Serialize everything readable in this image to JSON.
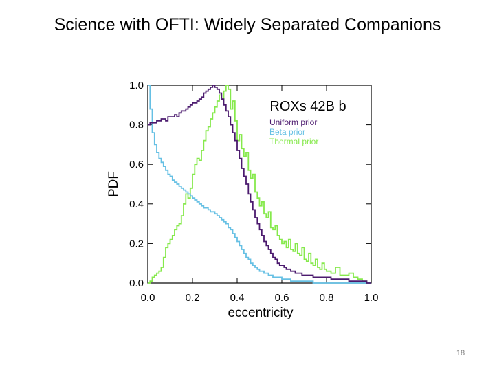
{
  "slide": {
    "title": "Science with OFTI: Widely Separated Companions",
    "page_number": "18"
  },
  "chart_data": {
    "type": "line",
    "title": "ROXs 42B b",
    "xlabel": "eccentricity",
    "ylabel": "PDF",
    "xlim": [
      0.0,
      1.0
    ],
    "ylim": [
      0.0,
      1.0
    ],
    "xticks": [
      "0.0",
      "0.2",
      "0.4",
      "0.6",
      "0.8",
      "1.0"
    ],
    "yticks": [
      "0.0",
      "0.2",
      "0.4",
      "0.6",
      "0.8",
      "1.0"
    ],
    "legend_position": "top-right",
    "series": [
      {
        "name": "Uniform prior",
        "color": "#4b1a6e",
        "x": [
          0.0,
          0.01,
          0.02,
          0.03,
          0.04,
          0.05,
          0.06,
          0.07,
          0.08,
          0.09,
          0.1,
          0.11,
          0.12,
          0.13,
          0.14,
          0.15,
          0.16,
          0.17,
          0.18,
          0.19,
          0.2,
          0.21,
          0.22,
          0.23,
          0.24,
          0.25,
          0.26,
          0.27,
          0.28,
          0.29,
          0.3,
          0.31,
          0.32,
          0.33,
          0.34,
          0.35,
          0.36,
          0.37,
          0.38,
          0.39,
          0.4,
          0.41,
          0.42,
          0.43,
          0.44,
          0.45,
          0.46,
          0.47,
          0.48,
          0.49,
          0.5,
          0.51,
          0.52,
          0.53,
          0.54,
          0.55,
          0.56,
          0.57,
          0.58,
          0.59,
          0.6,
          0.61,
          0.62,
          0.63,
          0.64,
          0.65,
          0.66,
          0.67,
          0.68,
          0.69,
          0.7,
          0.72,
          0.74,
          0.76,
          0.78,
          0.8,
          0.82,
          0.84,
          0.86,
          0.88,
          0.9,
          0.92,
          0.94,
          0.96,
          0.98
        ],
        "y": [
          0.8,
          0.81,
          0.81,
          0.81,
          0.82,
          0.82,
          0.83,
          0.83,
          0.82,
          0.84,
          0.84,
          0.84,
          0.85,
          0.84,
          0.86,
          0.87,
          0.87,
          0.88,
          0.89,
          0.9,
          0.91,
          0.91,
          0.92,
          0.93,
          0.94,
          0.96,
          0.97,
          0.98,
          0.99,
          1.0,
          0.99,
          0.98,
          0.96,
          0.93,
          0.9,
          0.87,
          0.84,
          0.8,
          0.76,
          0.72,
          0.67,
          0.63,
          0.58,
          0.54,
          0.5,
          0.45,
          0.41,
          0.37,
          0.33,
          0.3,
          0.27,
          0.24,
          0.21,
          0.19,
          0.17,
          0.15,
          0.13,
          0.12,
          0.1,
          0.09,
          0.09,
          0.08,
          0.07,
          0.07,
          0.06,
          0.06,
          0.05,
          0.05,
          0.05,
          0.04,
          0.04,
          0.04,
          0.03,
          0.03,
          0.03,
          0.03,
          0.02,
          0.02,
          0.02,
          0.02,
          0.01,
          0.01,
          0.01,
          0.01,
          0.0
        ]
      },
      {
        "name": "Beta prior",
        "color": "#66c0e4",
        "x": [
          0.0,
          0.01,
          0.02,
          0.03,
          0.04,
          0.05,
          0.06,
          0.07,
          0.08,
          0.09,
          0.1,
          0.11,
          0.12,
          0.13,
          0.14,
          0.15,
          0.16,
          0.17,
          0.18,
          0.19,
          0.2,
          0.21,
          0.22,
          0.23,
          0.24,
          0.25,
          0.26,
          0.27,
          0.28,
          0.29,
          0.3,
          0.31,
          0.32,
          0.33,
          0.34,
          0.35,
          0.36,
          0.37,
          0.38,
          0.39,
          0.4,
          0.41,
          0.42,
          0.43,
          0.44,
          0.45,
          0.46,
          0.47,
          0.48,
          0.49,
          0.5,
          0.52,
          0.54,
          0.56,
          0.58,
          0.6,
          0.62,
          0.64,
          0.66,
          0.68,
          0.7,
          0.72,
          0.74,
          0.76,
          0.78,
          0.8,
          0.85,
          0.9,
          0.95
        ],
        "y": [
          1.0,
          0.88,
          0.76,
          0.7,
          0.66,
          0.63,
          0.61,
          0.59,
          0.57,
          0.55,
          0.54,
          0.52,
          0.51,
          0.5,
          0.49,
          0.48,
          0.47,
          0.46,
          0.45,
          0.44,
          0.43,
          0.42,
          0.41,
          0.4,
          0.39,
          0.38,
          0.38,
          0.37,
          0.36,
          0.36,
          0.35,
          0.34,
          0.33,
          0.32,
          0.31,
          0.3,
          0.28,
          0.27,
          0.25,
          0.23,
          0.21,
          0.19,
          0.17,
          0.15,
          0.13,
          0.12,
          0.1,
          0.09,
          0.08,
          0.07,
          0.06,
          0.05,
          0.04,
          0.03,
          0.03,
          0.02,
          0.02,
          0.01,
          0.01,
          0.01,
          0.01,
          0.01,
          0.0,
          0.0,
          0.0,
          0.0,
          0.0,
          0.0,
          0.0
        ]
      },
      {
        "name": "Thermal prior",
        "color": "#86e94c",
        "x": [
          0.0,
          0.01,
          0.02,
          0.03,
          0.04,
          0.05,
          0.06,
          0.07,
          0.08,
          0.09,
          0.1,
          0.11,
          0.12,
          0.13,
          0.14,
          0.15,
          0.16,
          0.17,
          0.18,
          0.19,
          0.2,
          0.21,
          0.22,
          0.23,
          0.24,
          0.25,
          0.26,
          0.27,
          0.28,
          0.29,
          0.3,
          0.31,
          0.32,
          0.33,
          0.34,
          0.35,
          0.36,
          0.37,
          0.38,
          0.39,
          0.4,
          0.41,
          0.42,
          0.43,
          0.44,
          0.45,
          0.46,
          0.47,
          0.48,
          0.49,
          0.5,
          0.51,
          0.52,
          0.53,
          0.54,
          0.55,
          0.56,
          0.57,
          0.58,
          0.59,
          0.6,
          0.61,
          0.62,
          0.63,
          0.64,
          0.65,
          0.66,
          0.67,
          0.68,
          0.69,
          0.7,
          0.71,
          0.72,
          0.73,
          0.74,
          0.75,
          0.76,
          0.77,
          0.78,
          0.79,
          0.8,
          0.82,
          0.84,
          0.86,
          0.88,
          0.9,
          0.92,
          0.94,
          0.96,
          0.98
        ],
        "y": [
          0.0,
          0.01,
          0.03,
          0.04,
          0.05,
          0.06,
          0.08,
          0.13,
          0.18,
          0.2,
          0.22,
          0.24,
          0.27,
          0.29,
          0.3,
          0.34,
          0.4,
          0.45,
          0.43,
          0.48,
          0.55,
          0.6,
          0.63,
          0.62,
          0.67,
          0.72,
          0.77,
          0.79,
          0.83,
          0.86,
          0.89,
          0.92,
          0.95,
          0.93,
          0.97,
          1.0,
          0.98,
          0.88,
          0.92,
          0.82,
          0.72,
          0.75,
          0.68,
          0.64,
          0.66,
          0.57,
          0.53,
          0.55,
          0.46,
          0.43,
          0.39,
          0.41,
          0.35,
          0.33,
          0.36,
          0.28,
          0.27,
          0.29,
          0.24,
          0.22,
          0.2,
          0.21,
          0.18,
          0.22,
          0.17,
          0.16,
          0.2,
          0.15,
          0.14,
          0.18,
          0.12,
          0.11,
          0.15,
          0.1,
          0.09,
          0.12,
          0.08,
          0.07,
          0.1,
          0.07,
          0.06,
          0.05,
          0.08,
          0.04,
          0.04,
          0.05,
          0.03,
          0.02,
          0.01,
          0.0
        ]
      }
    ]
  }
}
